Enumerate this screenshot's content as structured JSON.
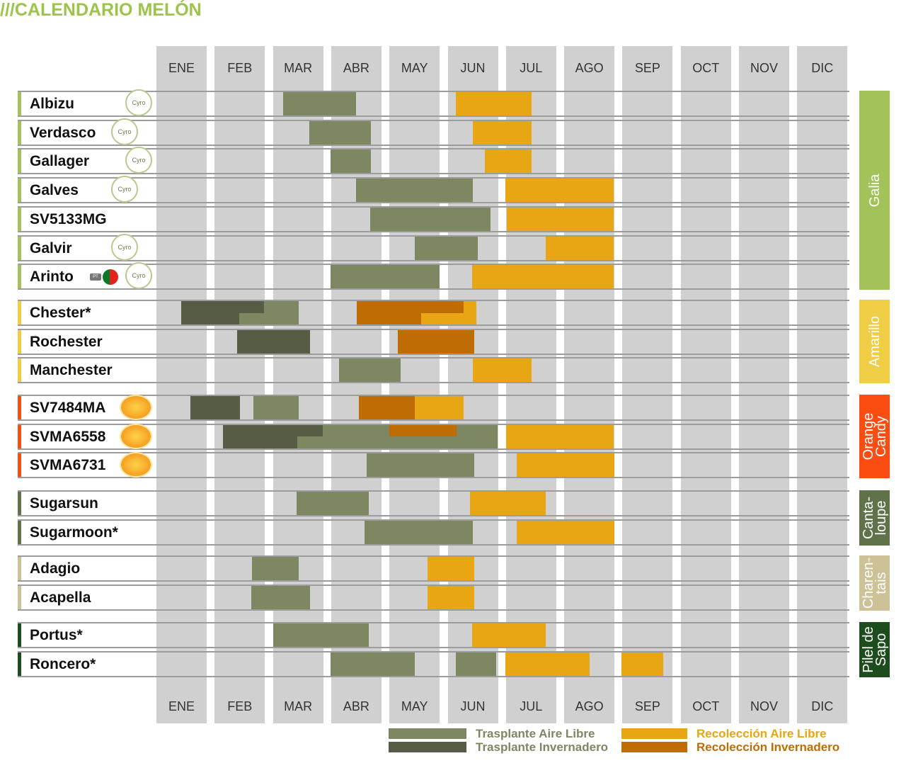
{
  "chart_data": {
    "type": "gantt",
    "title": "///CALENDARIO MELÓN",
    "months": [
      "ENE",
      "FEB",
      "MAR",
      "ABR",
      "MAY",
      "JUN",
      "JUL",
      "AGO",
      "SEP",
      "OCT",
      "NOV",
      "DIC"
    ],
    "legend": [
      {
        "key": "tal",
        "label": "Trasplante Aire Libre",
        "color": "#7d8762"
      },
      {
        "key": "ti",
        "label": "Trasplante Invernadero",
        "color": "#575c44"
      },
      {
        "key": "ral",
        "label": "Recolección Aire Libre",
        "color": "#e8a514"
      },
      {
        "key": "ri",
        "label": "Recolección Invernadero",
        "color": "#c06c05"
      }
    ],
    "groups": [
      {
        "label": "Galia",
        "color": "#a3c25a",
        "rows": [
          {
            "name": "Albizu",
            "icons": [
              "cyro-logo"
            ],
            "bars": [
              {
                "type": "tal",
                "start": 2.17,
                "end": 3.43
              },
              {
                "type": "ral",
                "start": 5.14,
                "end": 6.44
              }
            ]
          },
          {
            "name": "Verdasco",
            "icons": [
              "cyro-logo"
            ],
            "bars": [
              {
                "type": "tal",
                "start": 2.62,
                "end": 3.68
              },
              {
                "type": "ral",
                "start": 5.43,
                "end": 6.44
              }
            ]
          },
          {
            "name": "Gallager",
            "icons": [
              "cyro-logo"
            ],
            "bars": [
              {
                "type": "tal",
                "start": 2.99,
                "end": 3.68
              },
              {
                "type": "ral",
                "start": 5.64,
                "end": 6.44
              }
            ]
          },
          {
            "name": "Galves",
            "icons": [
              "cyro-logo"
            ],
            "bars": [
              {
                "type": "tal",
                "start": 3.43,
                "end": 5.43
              },
              {
                "type": "ral",
                "start": 5.99,
                "end": 7.85
              }
            ]
          },
          {
            "name": "SV5133MG",
            "icons": [],
            "bars": [
              {
                "type": "tal",
                "start": 3.67,
                "end": 5.74
              },
              {
                "type": "ral",
                "start": 6.01,
                "end": 7.85
              }
            ]
          },
          {
            "name": "Galvir",
            "icons": [
              "cyro-logo"
            ],
            "bars": [
              {
                "type": "tal",
                "start": 4.43,
                "end": 5.52
              },
              {
                "type": "ral",
                "start": 6.68,
                "end": 7.85
              }
            ]
          },
          {
            "name": "Arinto",
            "icons": [
              "pt-flag",
              "cyro-logo"
            ],
            "bars": [
              {
                "type": "tal",
                "start": 2.99,
                "end": 4.86
              },
              {
                "type": "ral",
                "start": 5.42,
                "end": 7.85
              }
            ]
          }
        ]
      },
      {
        "label": "Amarillo",
        "color": "#efcd45",
        "rows": [
          {
            "name": "Chester*",
            "icons": [],
            "bars": [
              {
                "type": "ti",
                "start": 0.43,
                "end": 1.85,
                "lane": "top"
              },
              {
                "type": "tal",
                "start": 1.85,
                "end": 2.44,
                "lane": "top"
              },
              {
                "type": "ti",
                "start": 0.43,
                "end": 1.42,
                "lane": "bottom"
              },
              {
                "type": "tal",
                "start": 1.42,
                "end": 2.44,
                "lane": "bottom"
              },
              {
                "type": "ri",
                "start": 3.44,
                "end": 5.27,
                "lane": "top"
              },
              {
                "type": "ral",
                "start": 5.27,
                "end": 5.49,
                "lane": "top"
              },
              {
                "type": "ri",
                "start": 3.44,
                "end": 4.54,
                "lane": "bottom"
              },
              {
                "type": "ral",
                "start": 4.54,
                "end": 5.49,
                "lane": "bottom"
              }
            ]
          },
          {
            "name": "Rochester",
            "icons": [],
            "bars": [
              {
                "type": "ti",
                "start": 1.39,
                "end": 2.64
              },
              {
                "type": "ri",
                "start": 4.14,
                "end": 5.46
              }
            ]
          },
          {
            "name": "Manchester",
            "icons": [],
            "bars": [
              {
                "type": "tal",
                "start": 3.13,
                "end": 4.19
              },
              {
                "type": "ral",
                "start": 5.43,
                "end": 6.44
              }
            ]
          }
        ]
      },
      {
        "label": "Orange\nCandy",
        "color": "#fb4d12",
        "rows": [
          {
            "name": "SV7484MA",
            "icons": [
              "orange-candy-logo"
            ],
            "bars": [
              {
                "type": "ti",
                "start": 0.58,
                "end": 1.43
              },
              {
                "type": "tal",
                "start": 1.66,
                "end": 2.44
              },
              {
                "type": "ri",
                "start": 3.48,
                "end": 4.43
              },
              {
                "type": "ral",
                "start": 4.43,
                "end": 5.27
              }
            ]
          },
          {
            "name": "SVMA6558",
            "icons": [
              "orange-candy-logo"
            ],
            "bars": [
              {
                "type": "ti",
                "start": 1.14,
                "end": 2.86,
                "lane": "top"
              },
              {
                "type": "tal",
                "start": 2.86,
                "end": 4.0,
                "lane": "top"
              },
              {
                "type": "ri",
                "start": 4.0,
                "end": 5.15,
                "lane": "top"
              },
              {
                "type": "tal",
                "start": 5.15,
                "end": 5.86,
                "lane": "top"
              },
              {
                "type": "ti",
                "start": 1.14,
                "end": 2.42,
                "lane": "bottom"
              },
              {
                "type": "tal",
                "start": 2.42,
                "end": 5.86,
                "lane": "bottom"
              },
              {
                "type": "ral",
                "start": 6.0,
                "end": 7.85
              }
            ]
          },
          {
            "name": "SVMA6731",
            "icons": [
              "orange-candy-logo"
            ],
            "bars": [
              {
                "type": "tal",
                "start": 3.61,
                "end": 5.46
              },
              {
                "type": "ral",
                "start": 6.18,
                "end": 7.86
              }
            ]
          }
        ]
      },
      {
        "label": "Canta-\nloupe",
        "color": "#5f7249",
        "rows": [
          {
            "name": "Sugarsun",
            "icons": [],
            "bars": [
              {
                "type": "tal",
                "start": 2.41,
                "end": 3.65
              },
              {
                "type": "ral",
                "start": 5.38,
                "end": 6.68
              }
            ]
          },
          {
            "name": "Sugarmoon*",
            "icons": [],
            "bars": [
              {
                "type": "tal",
                "start": 3.57,
                "end": 5.43
              },
              {
                "type": "ral",
                "start": 6.18,
                "end": 7.86
              }
            ]
          }
        ]
      },
      {
        "label": "Charen-\ntais",
        "color": "#cdc297",
        "rows": [
          {
            "name": "Adagio",
            "icons": [],
            "bars": [
              {
                "type": "tal",
                "start": 1.64,
                "end": 2.44
              },
              {
                "type": "ral",
                "start": 4.65,
                "end": 5.46
              }
            ]
          },
          {
            "name": "Acapella",
            "icons": [],
            "bars": [
              {
                "type": "tal",
                "start": 1.63,
                "end": 2.64
              },
              {
                "type": "ral",
                "start": 4.65,
                "end": 5.46
              }
            ]
          }
        ]
      },
      {
        "label": "Pilel de\nSapo",
        "color": "#1d4d1c",
        "rows": [
          {
            "name": "Portus*",
            "icons": [],
            "bars": [
              {
                "type": "tal",
                "start": 2.0,
                "end": 3.65
              },
              {
                "type": "ral",
                "start": 5.42,
                "end": 6.68
              }
            ]
          },
          {
            "name": "Roncero*",
            "icons": [],
            "bars": [
              {
                "type": "tal",
                "start": 2.99,
                "end": 4.43
              },
              {
                "type": "tal",
                "start": 5.14,
                "end": 5.83
              },
              {
                "type": "ral",
                "start": 5.99,
                "end": 7.44
              },
              {
                "type": "ral",
                "start": 7.98,
                "end": 8.7
              }
            ]
          }
        ]
      }
    ]
  }
}
